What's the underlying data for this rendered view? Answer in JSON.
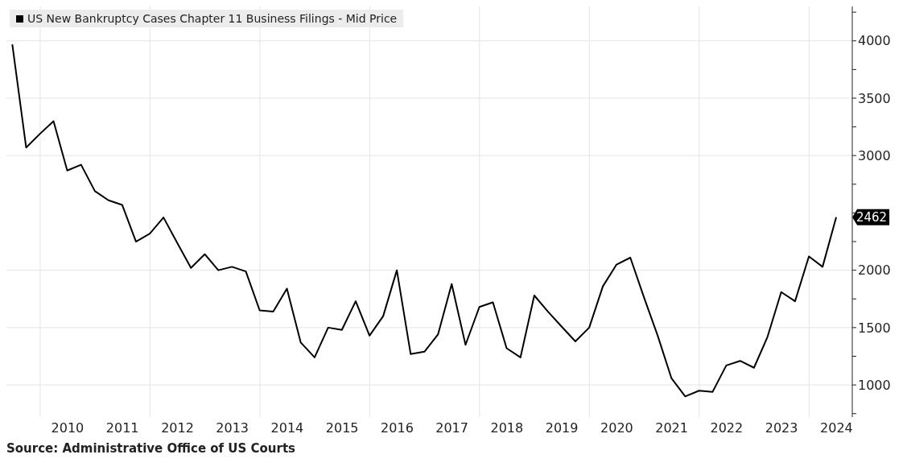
{
  "chart_data": {
    "type": "line",
    "x": [
      "2009-06-30",
      "2009-09-30",
      "2009-12-31",
      "2010-03-31",
      "2010-06-30",
      "2010-09-30",
      "2010-12-31",
      "2011-03-31",
      "2011-06-30",
      "2011-09-30",
      "2011-12-31",
      "2012-03-31",
      "2012-06-30",
      "2012-09-30",
      "2012-12-31",
      "2013-03-31",
      "2013-06-30",
      "2013-09-30",
      "2013-12-31",
      "2014-03-31",
      "2014-06-30",
      "2014-09-30",
      "2014-12-31",
      "2015-03-31",
      "2015-06-30",
      "2015-09-30",
      "2015-12-31",
      "2016-03-31",
      "2016-06-30",
      "2016-09-30",
      "2016-12-31",
      "2017-03-31",
      "2017-06-30",
      "2017-09-30",
      "2017-12-31",
      "2018-03-31",
      "2018-06-30",
      "2018-09-30",
      "2018-12-31",
      "2019-03-31",
      "2019-06-30",
      "2019-09-30",
      "2019-12-31",
      "2020-03-31",
      "2020-06-30",
      "2020-09-30",
      "2020-12-31",
      "2021-03-31",
      "2021-06-30",
      "2021-09-30",
      "2021-12-31",
      "2022-03-31",
      "2022-06-30",
      "2022-09-30",
      "2022-12-31",
      "2023-03-31",
      "2023-06-30",
      "2023-09-30",
      "2023-12-31",
      "2024-03-31",
      "2024-06-30"
    ],
    "series": [
      {
        "name": "US New Bankruptcy Cases Chapter 11 Business Filings - Mid Price",
        "color": "#000000",
        "values": [
          3970,
          3070,
          3190,
          3300,
          2870,
          2920,
          2690,
          2610,
          2570,
          2250,
          2320,
          2460,
          2240,
          2020,
          2140,
          2000,
          2030,
          1990,
          1650,
          1640,
          1840,
          1370,
          1240,
          1500,
          1480,
          1730,
          1430,
          1600,
          2000,
          1270,
          1290,
          1440,
          1880,
          1350,
          1680,
          1720,
          1320,
          1240,
          1780,
          1640,
          1510,
          1380,
          1500,
          1860,
          2050,
          2110,
          1760,
          1430,
          1060,
          900,
          950,
          940,
          1170,
          1210,
          1150,
          1420,
          1810,
          1730,
          2120,
          2030,
          2462
        ],
        "value_labels": [
          null,
          null,
          null,
          null,
          null,
          null,
          null,
          null,
          null,
          null,
          null,
          null,
          null,
          null,
          null,
          null,
          null,
          null,
          null,
          null,
          null,
          null,
          null,
          null,
          null,
          null,
          null,
          null,
          null,
          null,
          null,
          null,
          null,
          null,
          null,
          null,
          null,
          null,
          null,
          null,
          null,
          null,
          null,
          null,
          null,
          null,
          null,
          null,
          null,
          null,
          null,
          null,
          null,
          null,
          null,
          null,
          null,
          null,
          null,
          null,
          "2462"
        ]
      }
    ],
    "xlim": [
      "2009-05-22",
      "2024-10-15"
    ],
    "xticks": [
      {
        "value": "2010-01-01",
        "label": null
      },
      {
        "value": "2010-07-02",
        "label": "2010"
      },
      {
        "value": "2011-07-02",
        "label": "2011"
      },
      {
        "value": "2012-01-01",
        "label": null
      },
      {
        "value": "2012-07-02",
        "label": "2012"
      },
      {
        "value": "2013-07-02",
        "label": "2013"
      },
      {
        "value": "2014-01-01",
        "label": null
      },
      {
        "value": "2014-07-02",
        "label": "2014"
      },
      {
        "value": "2015-07-02",
        "label": "2015"
      },
      {
        "value": "2016-01-01",
        "label": null
      },
      {
        "value": "2016-07-02",
        "label": "2016"
      },
      {
        "value": "2017-07-02",
        "label": "2017"
      },
      {
        "value": "2018-01-01",
        "label": null
      },
      {
        "value": "2018-07-02",
        "label": "2018"
      },
      {
        "value": "2019-07-02",
        "label": "2019"
      },
      {
        "value": "2020-01-01",
        "label": null
      },
      {
        "value": "2020-07-02",
        "label": "2020"
      },
      {
        "value": "2021-07-02",
        "label": "2021"
      },
      {
        "value": "2022-01-01",
        "label": null
      },
      {
        "value": "2022-07-02",
        "label": "2022"
      },
      {
        "value": "2023-07-02",
        "label": "2023"
      },
      {
        "value": "2024-01-01",
        "label": null
      },
      {
        "value": "2024-07-02",
        "label": "2024"
      }
    ],
    "ylim": [
      720,
      4300
    ],
    "yticks": [
      {
        "value": 750,
        "label": null
      },
      1000,
      {
        "value": 1250,
        "label": null
      },
      1500,
      {
        "value": 1750,
        "label": null
      },
      2000,
      {
        "value": 2250,
        "label": null
      },
      {
        "value": 2500,
        "label": null
      },
      {
        "value": 2750,
        "label": null
      },
      3000,
      {
        "value": 3250,
        "label": null
      },
      3500,
      {
        "value": 3750,
        "label": null
      },
      4000,
      {
        "value": 4250,
        "label": null
      }
    ],
    "grid": true,
    "legend": "top left",
    "marker": "none",
    "line_style": "solid",
    "annotations": [
      "Source: Administrative Office of US Courts"
    ]
  }
}
